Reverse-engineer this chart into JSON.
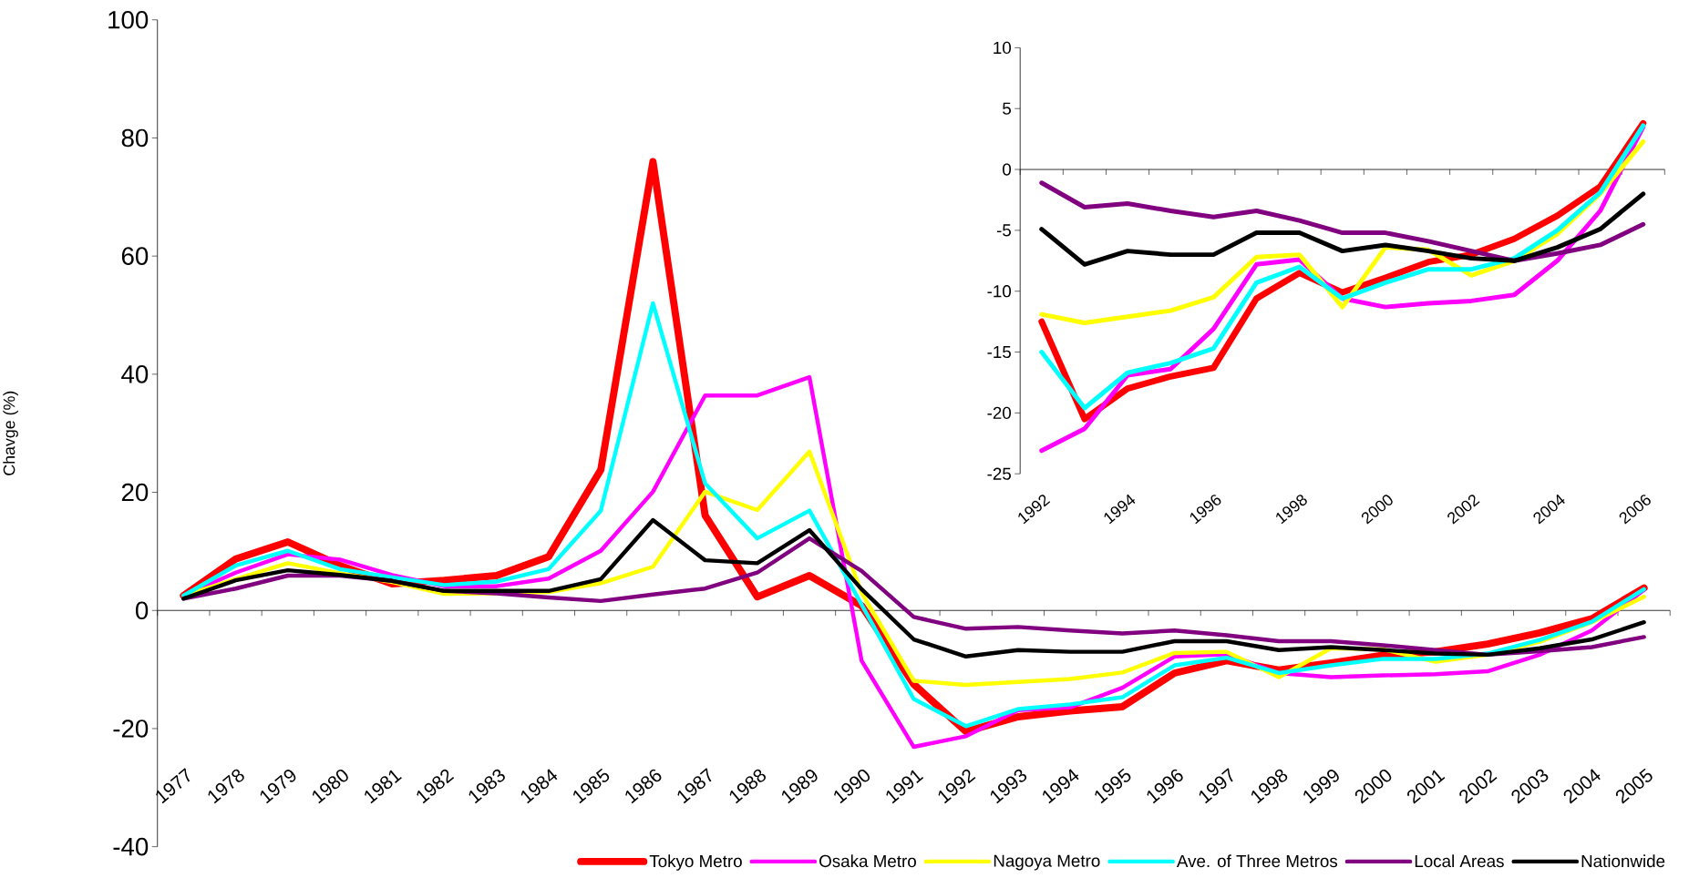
{
  "chart_data": [
    {
      "type": "line",
      "ylabel": "Chavge (%)",
      "legend": "bottom",
      "marker": "none",
      "line_style": "solid",
      "categories": [
        "1977",
        "1978",
        "1979",
        "1980",
        "1981",
        "1982",
        "1983",
        "1984",
        "1985",
        "1986",
        "1987",
        "1988",
        "1989",
        "1990",
        "1991",
        "1992",
        "1993",
        "1994",
        "1995",
        "1996",
        "1997",
        "1998",
        "1999",
        "2000",
        "2001",
        "2002",
        "2003",
        "2004",
        "2005"
      ],
      "ylim": [
        -40,
        100
      ],
      "yticks": [
        -40,
        -20,
        0,
        20,
        40,
        60,
        80,
        100
      ],
      "series": [
        {
          "name": "Tokyo Metro",
          "color": "#ff0000",
          "values": [
            2.5,
            8.7,
            11.6,
            7.6,
            4.5,
            5.1,
            5.9,
            9.1,
            23.8,
            76,
            16.1,
            2.3,
            5.9,
            0.8,
            -12.5,
            -20.5,
            -18,
            -17,
            -16.3,
            -10.6,
            -8.5,
            -10.1,
            -8.9,
            -7.6,
            -7,
            -5.7,
            -3.8,
            -1.4,
            3.8
          ]
        },
        {
          "name": "Osaka Metro",
          "color": "#ff00ff",
          "values": [
            2.5,
            6.4,
            9.5,
            8.6,
            6,
            4.1,
            4.1,
            5.4,
            10.1,
            20.1,
            36.4,
            36.4,
            39.5,
            -8.5,
            -23.1,
            -21.3,
            -16.9,
            -16.4,
            -13.1,
            -7.8,
            -7.4,
            -10.6,
            -11.3,
            -11,
            -10.8,
            -10.3,
            -7.5,
            -3.4,
            3.5
          ]
        },
        {
          "name": "Nagoya Metro",
          "color": "#ffff00",
          "values": [
            2.5,
            5.3,
            8,
            6.3,
            4.8,
            2.8,
            2.9,
            3.1,
            4.6,
            7.4,
            20.1,
            17,
            26.9,
            3,
            -11.9,
            -12.6,
            -12.1,
            -11.6,
            -10.5,
            -7.2,
            -7,
            -11.3,
            -6.4,
            -6.6,
            -8.7,
            -7.5,
            -5.3,
            -2,
            2.3
          ]
        },
        {
          "name": "Ave. of Three Metros",
          "color": "#00ffff",
          "values": [
            2.5,
            7.6,
            10.1,
            7,
            5.6,
            4.3,
            4.9,
            7,
            16.9,
            52,
            21.5,
            12.2,
            16.9,
            1,
            -15,
            -19.6,
            -16.7,
            -15.9,
            -14.7,
            -9.3,
            -8,
            -10.6,
            -9.3,
            -8.2,
            -8.2,
            -7.3,
            -5,
            -1.9,
            3.6
          ]
        },
        {
          "name": "Local Areas",
          "color": "#800080",
          "values": [
            2,
            3.7,
            5.9,
            5.9,
            5,
            3.3,
            2.9,
            2.2,
            1.6,
            2.7,
            3.7,
            6.4,
            12.2,
            6.7,
            -1.1,
            -3.1,
            -2.8,
            -3.4,
            -3.9,
            -3.4,
            -4.2,
            -5.2,
            -5.2,
            -5.9,
            -6.7,
            -7.5,
            -6.9,
            -6.2,
            -4.5
          ]
        },
        {
          "name": "Nationwide",
          "color": "#000000",
          "values": [
            2,
            5.1,
            6.8,
            6,
            5,
            3.3,
            3.3,
            3.3,
            5.3,
            15.3,
            8.5,
            8,
            13.6,
            3.6,
            -4.9,
            -7.8,
            -6.7,
            -7,
            -7,
            -5.2,
            -5.2,
            -6.7,
            -6.2,
            -6.7,
            -7.3,
            -7.5,
            -6.4,
            -4.9,
            -2
          ]
        }
      ]
    },
    {
      "type": "line",
      "legend": false,
      "marker": "none",
      "line_style": "solid",
      "categories": [
        "1992",
        null,
        "1994",
        null,
        "1996",
        null,
        "1998",
        null,
        "2000",
        null,
        "2002",
        null,
        "2004",
        null,
        "2006"
      ],
      "ylim": [
        -25,
        10
      ],
      "yticks": [
        -25,
        -20,
        -15,
        -10,
        -5,
        0,
        5,
        10
      ],
      "series": [
        {
          "color": "#ff0000",
          "values": [
            -12.5,
            -20.5,
            -18,
            -17,
            -16.3,
            -10.6,
            -8.5,
            -10.1,
            -8.9,
            -7.6,
            -7,
            -5.7,
            -3.8,
            -1.4,
            3.8
          ]
        },
        {
          "color": "#ff00ff",
          "values": [
            -23.1,
            -21.3,
            -16.9,
            -16.4,
            -13.1,
            -7.8,
            -7.4,
            -10.6,
            -11.3,
            -11,
            -10.8,
            -10.3,
            -7.5,
            -3.4,
            3.5
          ]
        },
        {
          "color": "#ffff00",
          "values": [
            -11.9,
            -12.6,
            -12.1,
            -11.6,
            -10.5,
            -7.2,
            -7,
            -11.3,
            -6.4,
            -6.6,
            -8.7,
            -7.5,
            -5.3,
            -2,
            2.3
          ]
        },
        {
          "color": "#00ffff",
          "values": [
            -15,
            -19.6,
            -16.7,
            -15.9,
            -14.7,
            -9.3,
            -8,
            -10.6,
            -9.3,
            -8.2,
            -8.2,
            -7.3,
            -5,
            -1.9,
            3.6
          ]
        },
        {
          "color": "#800080",
          "values": [
            -1.1,
            -3.1,
            -2.8,
            -3.4,
            -3.9,
            -3.4,
            -4.2,
            -5.2,
            -5.2,
            -5.9,
            -6.7,
            -7.5,
            -6.9,
            -6.2,
            -4.5
          ]
        },
        {
          "color": "#000000",
          "values": [
            -4.9,
            -7.8,
            -6.7,
            -7,
            -7,
            -5.2,
            -5.2,
            -6.7,
            -6.2,
            -6.7,
            -7.3,
            -7.5,
            -6.4,
            -4.9,
            -2
          ]
        }
      ]
    }
  ]
}
